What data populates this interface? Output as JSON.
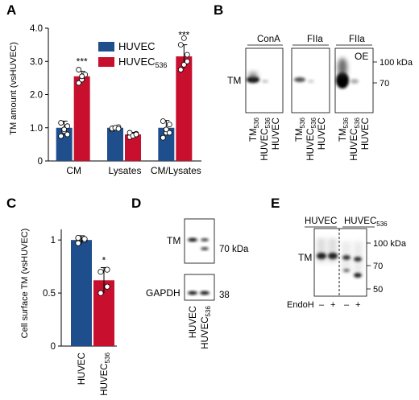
{
  "panels": {
    "A": "A",
    "B": "B",
    "C": "C",
    "D": "D",
    "E": "E"
  },
  "colors": {
    "huvec": "#1f4e8c",
    "huvec536": "#c8102e",
    "dot": "#ffffff",
    "blot": "#111111"
  },
  "chart_data": [
    {
      "panel": "A",
      "type": "bar",
      "ylabel": "TM amount (vsHUVEC)",
      "ylim": [
        0,
        4
      ],
      "yticks": [
        "0",
        "1.0",
        "2.0",
        "3.0",
        "4.0"
      ],
      "categories": [
        "CM",
        "Lysates",
        "CM/Lysates"
      ],
      "series": [
        {
          "name": "HUVEC",
          "values": [
            1.0,
            1.0,
            1.0
          ],
          "points": [
            [
              0.75,
              0.9,
              1.05,
              1.15,
              0.95,
              0.8
            ],
            [
              0.95,
              1.0,
              1.02,
              0.98,
              1.0,
              0.97
            ],
            [
              0.7,
              0.85,
              1.1,
              1.2,
              0.95,
              0.85
            ]
          ]
        },
        {
          "name": "HUVEC536",
          "values": [
            2.55,
            0.8,
            3.15
          ],
          "points": [
            [
              2.35,
              2.45,
              2.6,
              2.75,
              2.55
            ],
            [
              0.72,
              0.78,
              0.82,
              0.85,
              0.76,
              0.8
            ],
            [
              2.75,
              2.9,
              3.2,
              3.5,
              3.7,
              3.0
            ]
          ]
        }
      ],
      "errors": [
        [
          0.2,
          0.05,
          0.22
        ],
        [
          0.15,
          0.06,
          0.35
        ]
      ],
      "significance": [
        "***",
        "",
        "***"
      ],
      "legend": [
        "HUVEC",
        "HUVEC536"
      ],
      "legend_sub": "536"
    },
    {
      "panel": "C",
      "type": "bar",
      "ylabel": "Cell surface TM (vsHUVEC)",
      "ylim": [
        0,
        1.1
      ],
      "yticks": [
        "0",
        "0.5",
        "1"
      ],
      "categories": [
        "HUVEC",
        "HUVEC536"
      ],
      "values": [
        1.0,
        0.62
      ],
      "errors": [
        0.04,
        0.12
      ],
      "points": [
        [
          0.97,
          1.0,
          1.02,
          1.01
        ],
        [
          0.5,
          0.56,
          0.7,
          0.72
        ]
      ],
      "significance": [
        "",
        "*"
      ]
    }
  ],
  "panelB": {
    "groups": [
      "ConA",
      "FIIa",
      "FIIa"
    ],
    "oe_label": "OE",
    "row_label": "TM",
    "mw": [
      "100 kDa",
      "70"
    ],
    "lanes": [
      "TM536",
      "HUVEC536",
      "HUVEC"
    ]
  },
  "panelD": {
    "rows": [
      "TM",
      "GAPDH"
    ],
    "mw": [
      "70 kDa",
      "38"
    ],
    "lanes": [
      "HUVEC",
      "HUVEC536"
    ]
  },
  "panelE": {
    "headers": [
      "HUVEC",
      "HUVEC536"
    ],
    "row_label": "TM",
    "mw": [
      "100 kDa",
      "70",
      "50"
    ],
    "treatment": "EndoH",
    "signs": [
      "–",
      "+",
      "–",
      "+"
    ]
  }
}
